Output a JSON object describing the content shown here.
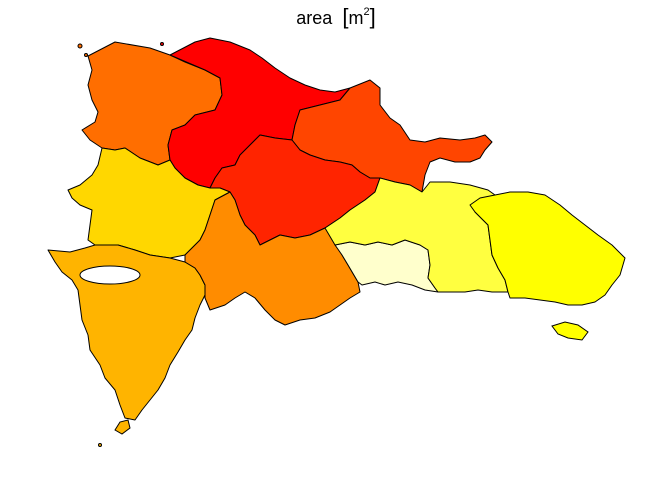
{
  "title": {
    "prefix": "area",
    "unit": "m",
    "exponent": "2"
  },
  "map": {
    "legend": "none",
    "regions": [
      {
        "id": "northwest",
        "fill": "#FF6E00"
      },
      {
        "id": "north-central",
        "fill": "#FF0000"
      },
      {
        "id": "northeast",
        "fill": "#FF4500"
      },
      {
        "id": "central",
        "fill": "#FF2400"
      },
      {
        "id": "west",
        "fill": "#FFD700"
      },
      {
        "id": "southwest",
        "fill": "#FFB400"
      },
      {
        "id": "south-central",
        "fill": "#FF8C00"
      },
      {
        "id": "capital",
        "fill": "#FFFFCC"
      },
      {
        "id": "east-central",
        "fill": "#FFFF40"
      },
      {
        "id": "east",
        "fill": "#FFFF00"
      },
      {
        "id": "islet-southeast",
        "fill": "#FFFF00"
      },
      {
        "id": "islet-southwest",
        "fill": "#FFB400"
      }
    ]
  }
}
